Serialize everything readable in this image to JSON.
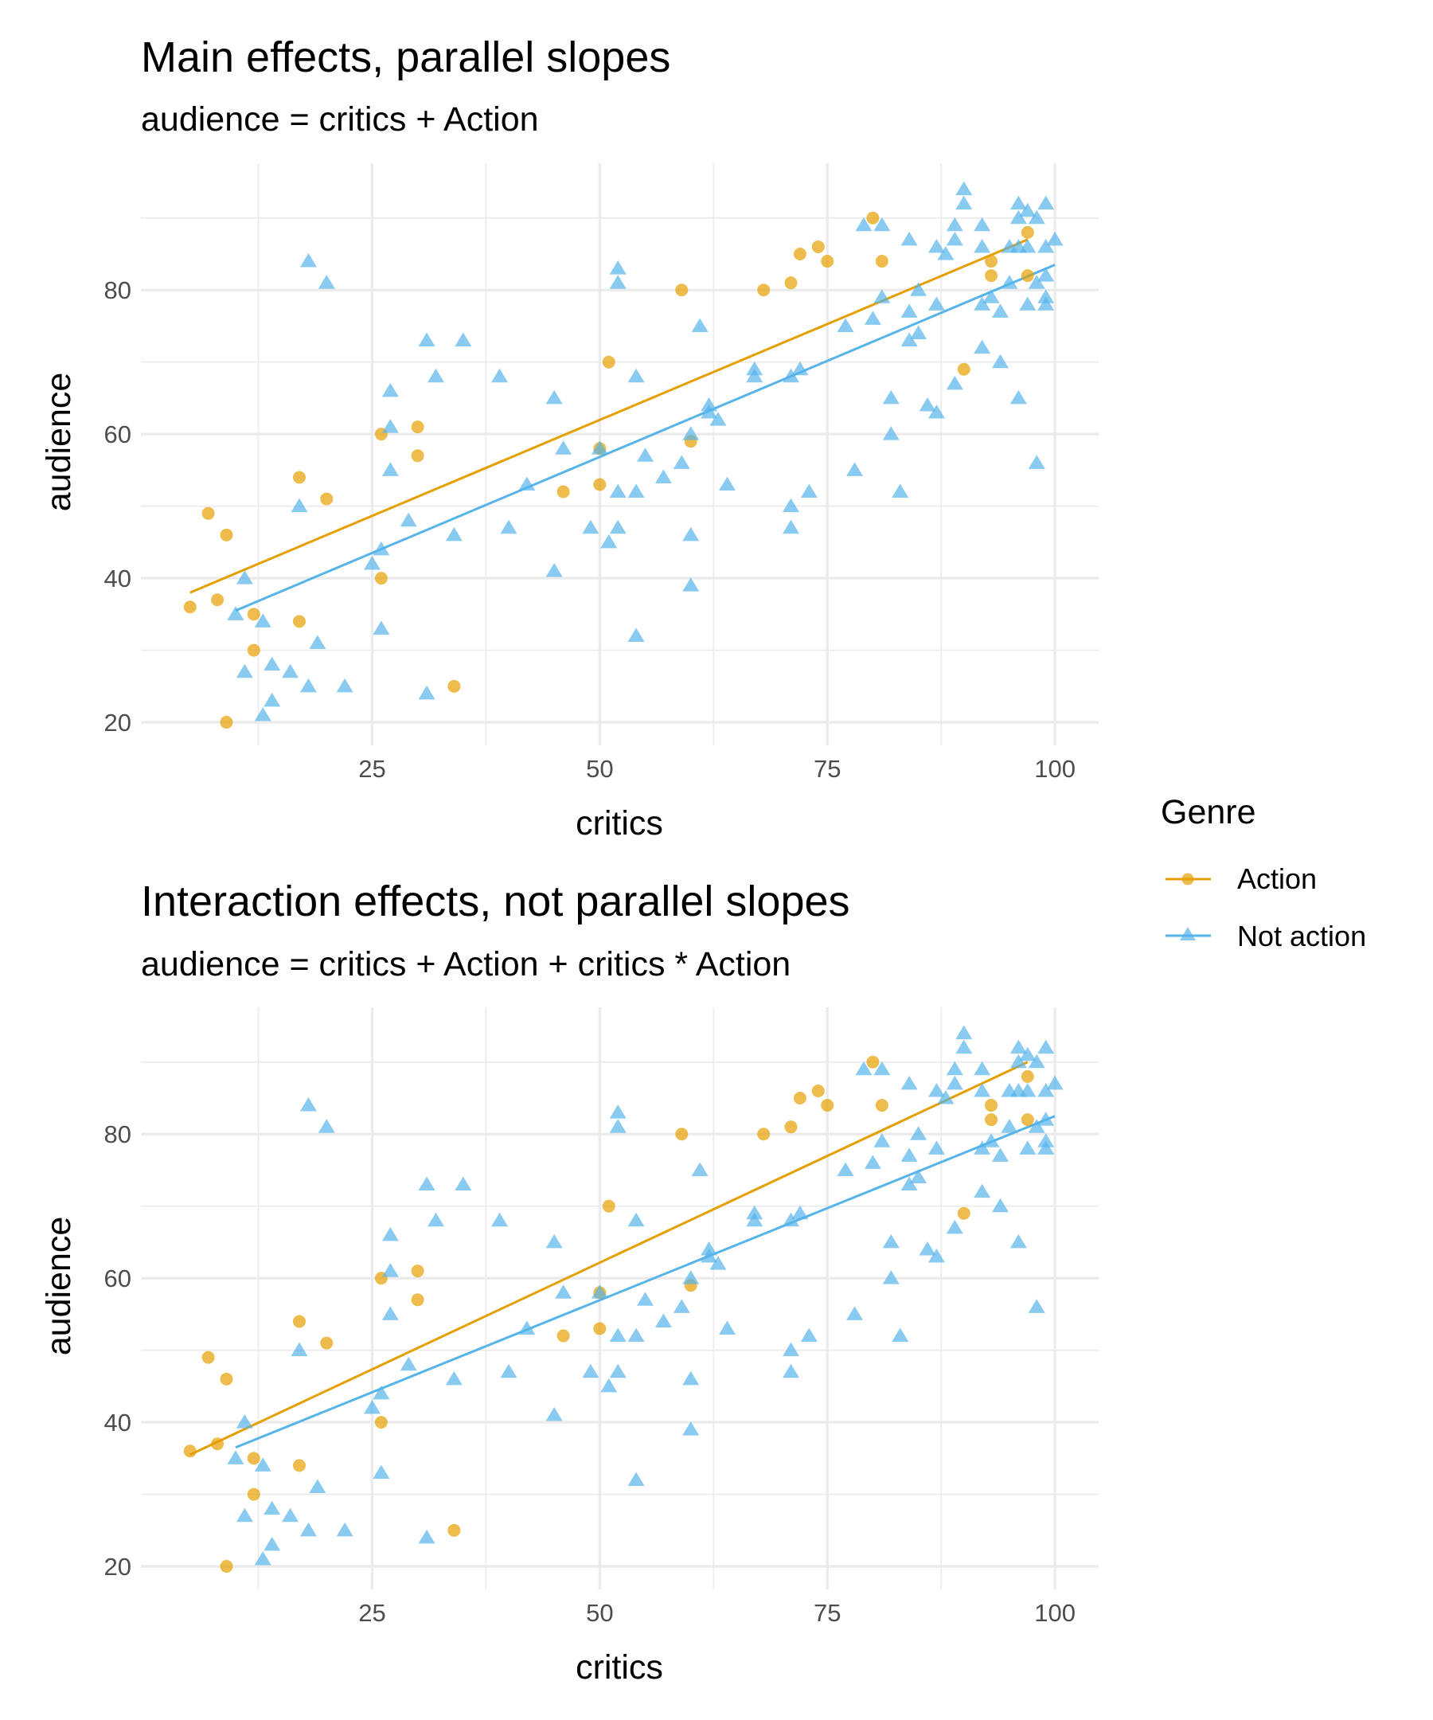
{
  "chart_data": [
    {
      "type": "scatter",
      "title": "Main effects, parallel slopes",
      "subtitle": "audience = critics + Action",
      "xlabel": "critics",
      "ylabel": "audience",
      "xlim": [
        -0.4,
        104.8
      ],
      "ylim": [
        16.8,
        97.6
      ],
      "xticks": [
        25,
        50,
        75,
        100
      ],
      "yticks": [
        20,
        40,
        60,
        80
      ],
      "grid": true,
      "fit_lines": [
        {
          "series": "Action",
          "x": [
            5,
            97
          ],
          "y": [
            38,
            87
          ]
        },
        {
          "series": "Not action",
          "x": [
            10,
            100
          ],
          "y": [
            35.5,
            83.5
          ]
        }
      ]
    },
    {
      "type": "scatter",
      "title": "Interaction effects, not parallel slopes",
      "subtitle": "audience = critics + Action + critics * Action",
      "xlabel": "critics",
      "ylabel": "audience",
      "xlim": [
        -0.4,
        104.8
      ],
      "ylim": [
        16.8,
        97.6
      ],
      "xticks": [
        25,
        50,
        75,
        100
      ],
      "yticks": [
        20,
        40,
        60,
        80
      ],
      "grid": true,
      "fit_lines": [
        {
          "series": "Action",
          "x": [
            5,
            97
          ],
          "y": [
            35.5,
            90
          ]
        },
        {
          "series": "Not action",
          "x": [
            10,
            100
          ],
          "y": [
            36.5,
            82.5
          ]
        }
      ]
    }
  ],
  "series": [
    {
      "name": "Action",
      "color": "#E69F00",
      "marker": "circle",
      "points": [
        [
          5,
          36
        ],
        [
          7,
          49
        ],
        [
          8,
          37
        ],
        [
          9,
          46
        ],
        [
          9,
          20
        ],
        [
          12,
          35
        ],
        [
          12,
          30
        ],
        [
          17,
          54
        ],
        [
          17,
          34
        ],
        [
          20,
          51
        ],
        [
          26,
          60
        ],
        [
          26,
          40
        ],
        [
          30,
          61
        ],
        [
          30,
          57
        ],
        [
          34,
          25
        ],
        [
          46,
          52
        ],
        [
          50,
          53
        ],
        [
          50,
          58
        ],
        [
          51,
          70
        ],
        [
          59,
          80
        ],
        [
          60,
          59
        ],
        [
          68,
          80
        ],
        [
          71,
          81
        ],
        [
          72,
          85
        ],
        [
          74,
          86
        ],
        [
          75,
          84
        ],
        [
          80,
          90
        ],
        [
          81,
          84
        ],
        [
          90,
          69
        ],
        [
          93,
          84
        ],
        [
          93,
          82
        ],
        [
          97,
          88
        ],
        [
          97,
          82
        ]
      ]
    },
    {
      "name": "Not action",
      "color": "#56B4E9",
      "marker": "triangle",
      "points": [
        [
          10,
          35
        ],
        [
          11,
          40
        ],
        [
          11,
          27
        ],
        [
          13,
          34
        ],
        [
          13,
          21
        ],
        [
          14,
          23
        ],
        [
          14,
          28
        ],
        [
          16,
          27
        ],
        [
          17,
          50
        ],
        [
          18,
          84
        ],
        [
          18,
          25
        ],
        [
          19,
          31
        ],
        [
          20,
          81
        ],
        [
          22,
          25
        ],
        [
          25,
          42
        ],
        [
          26,
          44
        ],
        [
          26,
          33
        ],
        [
          27,
          66
        ],
        [
          27,
          61
        ],
        [
          27,
          55
        ],
        [
          29,
          48
        ],
        [
          31,
          73
        ],
        [
          31,
          24
        ],
        [
          32,
          68
        ],
        [
          34,
          46
        ],
        [
          35,
          73
        ],
        [
          39,
          68
        ],
        [
          40,
          47
        ],
        [
          42,
          53
        ],
        [
          45,
          65
        ],
        [
          45,
          41
        ],
        [
          46,
          58
        ],
        [
          49,
          47
        ],
        [
          50,
          58
        ],
        [
          51,
          45
        ],
        [
          52,
          83
        ],
        [
          52,
          81
        ],
        [
          52,
          52
        ],
        [
          52,
          47
        ],
        [
          54,
          52
        ],
        [
          54,
          68
        ],
        [
          54,
          32
        ],
        [
          55,
          57
        ],
        [
          57,
          54
        ],
        [
          59,
          56
        ],
        [
          60,
          60
        ],
        [
          60,
          46
        ],
        [
          60,
          39
        ],
        [
          61,
          75
        ],
        [
          62,
          64
        ],
        [
          62,
          63
        ],
        [
          63,
          62
        ],
        [
          64,
          53
        ],
        [
          67,
          69
        ],
        [
          67,
          68
        ],
        [
          71,
          50
        ],
        [
          71,
          47
        ],
        [
          71,
          68
        ],
        [
          72,
          69
        ],
        [
          73,
          52
        ],
        [
          77,
          75
        ],
        [
          78,
          55
        ],
        [
          79,
          89
        ],
        [
          80,
          76
        ],
        [
          81,
          89
        ],
        [
          81,
          79
        ],
        [
          82,
          65
        ],
        [
          82,
          60
        ],
        [
          83,
          52
        ],
        [
          84,
          87
        ],
        [
          84,
          77
        ],
        [
          84,
          73
        ],
        [
          85,
          74
        ],
        [
          85,
          80
        ],
        [
          86,
          64
        ],
        [
          87,
          78
        ],
        [
          87,
          63
        ],
        [
          87,
          86
        ],
        [
          88,
          85
        ],
        [
          89,
          67
        ],
        [
          89,
          89
        ],
        [
          89,
          87
        ],
        [
          90,
          94
        ],
        [
          90,
          92
        ],
        [
          92,
          89
        ],
        [
          92,
          86
        ],
        [
          92,
          72
        ],
        [
          92,
          78
        ],
        [
          93,
          79
        ],
        [
          94,
          70
        ],
        [
          94,
          77
        ],
        [
          95,
          81
        ],
        [
          95,
          86
        ],
        [
          96,
          92
        ],
        [
          96,
          90
        ],
        [
          96,
          86
        ],
        [
          96,
          65
        ],
        [
          97,
          91
        ],
        [
          97,
          86
        ],
        [
          97,
          78
        ],
        [
          98,
          90
        ],
        [
          98,
          81
        ],
        [
          98,
          56
        ],
        [
          99,
          92
        ],
        [
          99,
          86
        ],
        [
          99,
          82
        ],
        [
          99,
          79
        ],
        [
          99,
          78
        ],
        [
          100,
          87
        ]
      ]
    }
  ],
  "legend": {
    "title": "Genre",
    "position": "right",
    "items": [
      {
        "label": "Action",
        "color": "#E69F00",
        "marker": "circle"
      },
      {
        "label": "Not action",
        "color": "#56B4E9",
        "marker": "triangle"
      }
    ]
  }
}
